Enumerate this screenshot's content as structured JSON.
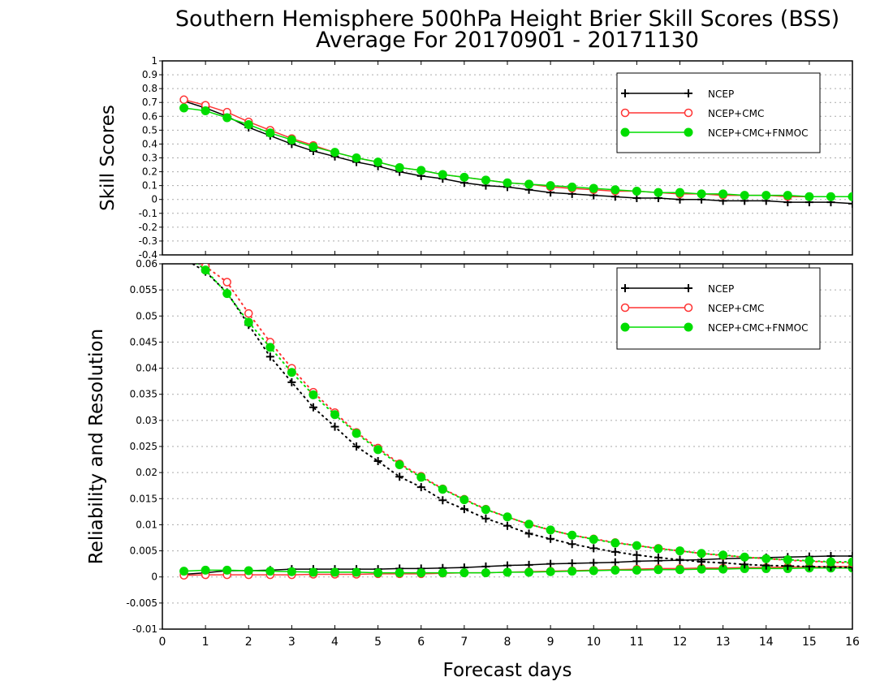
{
  "title": "Southern Hemisphere 500hPa Height Brier Skill Scores (BSS)",
  "subtitle": "Average For 20170901 - 20171130",
  "xlabel": "Forecast days",
  "colors": {
    "NCEP": "#000000",
    "NCEP+CMC": "#ff3333",
    "NCEP+CMC+FNMOC": "#00dd00"
  },
  "chart_data": [
    {
      "type": "line",
      "title": "Southern Hemisphere 500hPa Height Brier Skill Scores (BSS)",
      "subtitle": "Average For 20170901 - 20171130",
      "xlabel": "Forecast days",
      "ylabel": "Skill Scores",
      "xlim": [
        0,
        16
      ],
      "ylim": [
        -0.4,
        1
      ],
      "grid": true,
      "legend": "top-right",
      "x_ticks": [
        "0",
        "1",
        "2",
        "3",
        "4",
        "5",
        "6",
        "7",
        "8",
        "9",
        "10",
        "11",
        "12",
        "13",
        "14",
        "15",
        "16"
      ],
      "y_ticks": [
        "-0.4",
        "-0.3",
        "-0.2",
        "-0.1",
        "0",
        "0.1",
        "0.2",
        "0.3",
        "0.4",
        "0.5",
        "0.6",
        "0.7",
        "0.8",
        "0.9",
        "1"
      ],
      "x": [
        0.5,
        1,
        1.5,
        2,
        2.5,
        3,
        3.5,
        4,
        4.5,
        5,
        5.5,
        6,
        6.5,
        7,
        7.5,
        8,
        8.5,
        9,
        9.5,
        10,
        10.5,
        11,
        11.5,
        12,
        12.5,
        13,
        13.5,
        14,
        14.5,
        15,
        15.5,
        16
      ],
      "series": [
        {
          "name": "NCEP",
          "marker": "plus",
          "line": "solid",
          "values": [
            0.71,
            0.66,
            0.6,
            0.52,
            0.46,
            0.4,
            0.35,
            0.31,
            0.27,
            0.24,
            0.2,
            0.17,
            0.15,
            0.12,
            0.1,
            0.09,
            0.07,
            0.05,
            0.04,
            0.03,
            0.02,
            0.01,
            0.01,
            0.0,
            0.0,
            -0.01,
            -0.01,
            -0.01,
            -0.02,
            -0.02,
            -0.02,
            -0.03
          ]
        },
        {
          "name": "NCEP+CMC",
          "marker": "open-circle",
          "line": "solid",
          "values": [
            0.72,
            0.68,
            0.63,
            0.56,
            0.5,
            0.44,
            0.39,
            0.34,
            0.3,
            0.27,
            0.23,
            0.21,
            0.18,
            0.16,
            0.14,
            0.12,
            0.11,
            0.09,
            0.08,
            0.07,
            0.06,
            0.06,
            0.05,
            0.04,
            0.04,
            0.03,
            0.03,
            0.03,
            0.02,
            0.02,
            0.02,
            0.02
          ]
        },
        {
          "name": "NCEP+CMC+FNMOC",
          "marker": "filled-circle",
          "line": "solid",
          "values": [
            0.66,
            0.64,
            0.59,
            0.54,
            0.48,
            0.43,
            0.38,
            0.34,
            0.3,
            0.27,
            0.23,
            0.21,
            0.18,
            0.16,
            0.14,
            0.12,
            0.11,
            0.1,
            0.09,
            0.08,
            0.07,
            0.06,
            0.05,
            0.05,
            0.04,
            0.04,
            0.03,
            0.03,
            0.03,
            0.02,
            0.02,
            0.02
          ]
        }
      ]
    },
    {
      "type": "line",
      "xlabel": "Forecast days",
      "ylabel": "Reliability and Resolution",
      "xlim": [
        0,
        16
      ],
      "ylim": [
        -0.01,
        0.06
      ],
      "grid": true,
      "legend": "top-right",
      "x_ticks": [
        "0",
        "1",
        "2",
        "3",
        "4",
        "5",
        "6",
        "7",
        "8",
        "9",
        "10",
        "11",
        "12",
        "13",
        "14",
        "15",
        "16"
      ],
      "y_ticks": [
        "-0.01",
        "-0.005",
        "0",
        "0.005",
        "0.01",
        "0.015",
        "0.02",
        "0.025",
        "0.03",
        "0.035",
        "0.04",
        "0.045",
        "0.05",
        "0.055",
        "0.06"
      ],
      "x": [
        0.5,
        1,
        1.5,
        2,
        2.5,
        3,
        3.5,
        4,
        4.5,
        5,
        5.5,
        6,
        6.5,
        7,
        7.5,
        8,
        8.5,
        9,
        9.5,
        10,
        10.5,
        11,
        11.5,
        12,
        12.5,
        13,
        13.5,
        14,
        14.5,
        15,
        15.5,
        16
      ],
      "series": [
        {
          "name": "NCEP",
          "measure": "reliability",
          "marker": "plus",
          "line": "solid",
          "values": [
            0.0005,
            0.0008,
            0.0012,
            0.0012,
            0.0013,
            0.0015,
            0.0015,
            0.0015,
            0.0015,
            0.0015,
            0.0016,
            0.0016,
            0.0017,
            0.0018,
            0.002,
            0.0022,
            0.0023,
            0.0025,
            0.0026,
            0.0027,
            0.0028,
            0.003,
            0.0031,
            0.0032,
            0.0033,
            0.0035,
            0.0036,
            0.0037,
            0.0038,
            0.0039,
            0.004,
            0.004
          ]
        },
        {
          "name": "NCEP+CMC",
          "measure": "reliability",
          "marker": "open-circle",
          "line": "solid",
          "values": [
            0.0003,
            0.0004,
            0.0004,
            0.0004,
            0.0004,
            0.0004,
            0.0005,
            0.0005,
            0.0005,
            0.0006,
            0.0006,
            0.0006,
            0.0007,
            0.0008,
            0.0008,
            0.0009,
            0.001,
            0.0011,
            0.0012,
            0.0013,
            0.0014,
            0.0015,
            0.0016,
            0.0016,
            0.0017,
            0.0017,
            0.0018,
            0.0018,
            0.0019,
            0.0019,
            0.002,
            0.002
          ]
        },
        {
          "name": "NCEP+CMC+FNMOC",
          "measure": "reliability",
          "marker": "filled-circle",
          "line": "solid",
          "values": [
            0.0011,
            0.0013,
            0.0013,
            0.0012,
            0.0011,
            0.001,
            0.0009,
            0.0009,
            0.0009,
            0.0008,
            0.0008,
            0.0008,
            0.0008,
            0.0008,
            0.0008,
            0.0009,
            0.0009,
            0.001,
            0.0011,
            0.0012,
            0.0013,
            0.0013,
            0.0014,
            0.0014,
            0.0015,
            0.0015,
            0.0016,
            0.0016,
            0.0016,
            0.0017,
            0.0017,
            0.0017
          ]
        },
        {
          "name": "NCEP",
          "measure": "resolution",
          "marker": "plus",
          "line": "dotted",
          "values": [
            0.061,
            0.0585,
            0.0545,
            0.0483,
            0.0422,
            0.0373,
            0.0325,
            0.0288,
            0.025,
            0.0222,
            0.0192,
            0.0172,
            0.0147,
            0.013,
            0.0112,
            0.0098,
            0.0083,
            0.0073,
            0.0063,
            0.0055,
            0.0048,
            0.0042,
            0.0037,
            0.0033,
            0.0029,
            0.0027,
            0.0024,
            0.0022,
            0.0021,
            0.002,
            0.0019,
            0.0018
          ]
        },
        {
          "name": "NCEP+CMC",
          "measure": "resolution",
          "marker": "open-circle",
          "line": "dotted",
          "values": [
            0.0625,
            0.0595,
            0.0565,
            0.0505,
            0.045,
            0.04,
            0.0354,
            0.0315,
            0.0277,
            0.0247,
            0.0217,
            0.0193,
            0.0169,
            0.0149,
            0.013,
            0.0115,
            0.0101,
            0.009,
            0.008,
            0.0073,
            0.0066,
            0.006,
            0.0055,
            0.005,
            0.0045,
            0.0041,
            0.0038,
            0.0035,
            0.0032,
            0.003,
            0.0028,
            0.0027
          ]
        },
        {
          "name": "NCEP+CMC+FNMOC",
          "measure": "resolution",
          "marker": "filled-circle",
          "line": "dotted",
          "values": [
            0.062,
            0.0588,
            0.0543,
            0.0488,
            0.044,
            0.0392,
            0.0349,
            0.0311,
            0.0275,
            0.0244,
            0.0215,
            0.0191,
            0.0168,
            0.0148,
            0.0129,
            0.0115,
            0.0101,
            0.009,
            0.008,
            0.0072,
            0.0065,
            0.006,
            0.0054,
            0.005,
            0.0045,
            0.0042,
            0.0038,
            0.0035,
            0.0033,
            0.0031,
            0.0029,
            0.0029
          ]
        }
      ]
    }
  ]
}
